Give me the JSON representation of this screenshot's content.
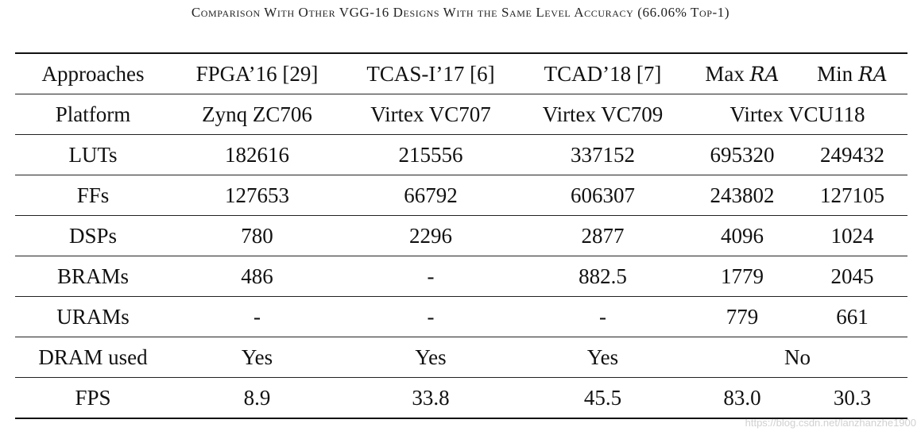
{
  "caption": "Comparison With Other VGG-16 Designs With the Same Level Accuracy (66.06% Top-1)",
  "table": {
    "header": {
      "label": "Approaches",
      "columns": [
        "FPGA’16 [29]",
        "TCAS-I’17 [6]",
        "TCAD’18 [7]"
      ],
      "max_prefix": "Max",
      "min_prefix": "Min",
      "ra": "RA"
    },
    "platform": {
      "label": "Platform",
      "values": [
        "Zynq ZC706",
        "Virtex VC707",
        "Virtex VC709"
      ],
      "shared": "Virtex VCU118"
    },
    "rows": [
      {
        "label": "LUTs",
        "values": [
          "182616",
          "215556",
          "337152",
          "695320",
          "249432"
        ]
      },
      {
        "label": "FFs",
        "values": [
          "127653",
          "66792",
          "606307",
          "243802",
          "127105"
        ]
      },
      {
        "label": "DSPs",
        "values": [
          "780",
          "2296",
          "2877",
          "4096",
          "1024"
        ]
      },
      {
        "label": "BRAMs",
        "values": [
          "486",
          "-",
          "882.5",
          "1779",
          "2045"
        ]
      },
      {
        "label": "URAMs",
        "values": [
          "-",
          "-",
          "-",
          "779",
          "661"
        ]
      }
    ],
    "dram": {
      "label": "DRAM used",
      "values": [
        "Yes",
        "Yes",
        "Yes"
      ],
      "shared": "No"
    },
    "fps": {
      "label": "FPS",
      "values": [
        "8.9",
        "33.8",
        "45.5",
        "83.0",
        "30.3"
      ]
    }
  },
  "watermark": "https://blog.csdn.net/lanzhanzhe1900"
}
